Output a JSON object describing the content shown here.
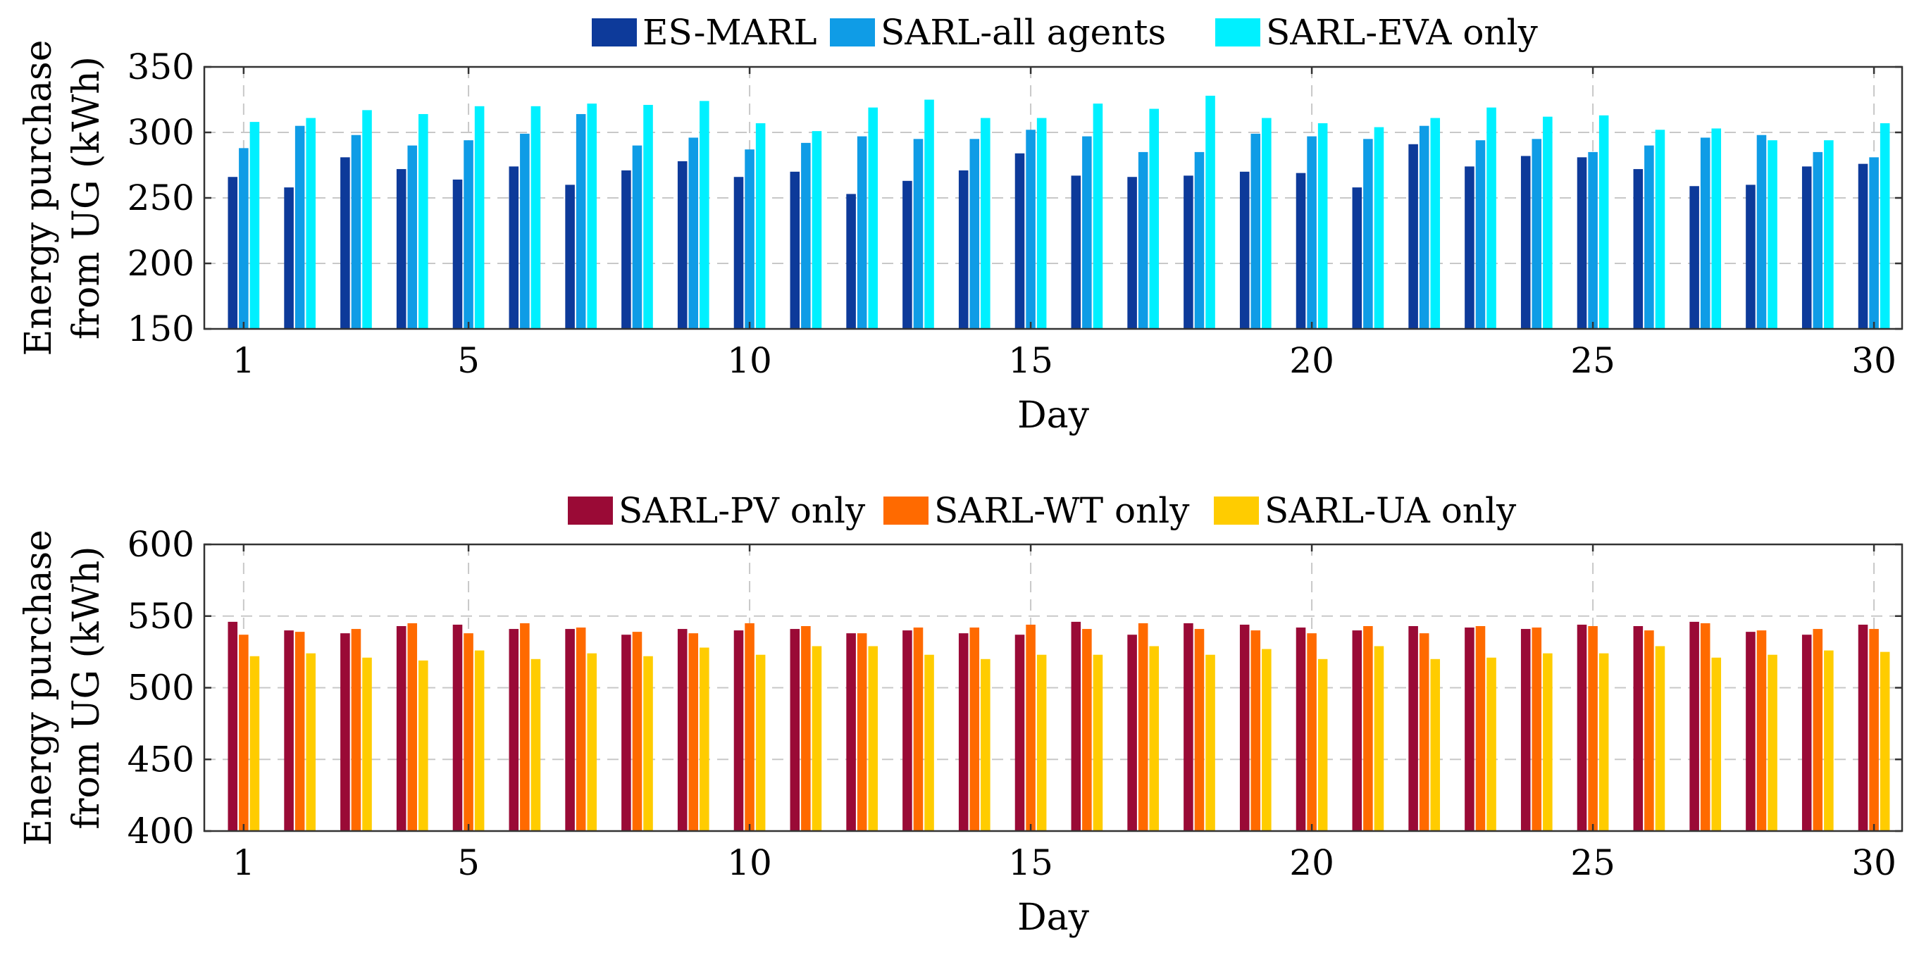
{
  "chart_data": [
    {
      "type": "bar",
      "title": "",
      "xlabel": "Day",
      "ylabel": [
        "Energy purchase",
        "from UG (kWh)"
      ],
      "x": [
        1,
        2,
        3,
        4,
        5,
        6,
        7,
        8,
        9,
        10,
        11,
        12,
        13,
        14,
        15,
        16,
        17,
        18,
        19,
        20,
        21,
        22,
        23,
        24,
        25,
        26,
        27,
        28,
        29,
        30
      ],
      "xticks": [
        "1",
        "5",
        "10",
        "15",
        "20",
        "25",
        "30"
      ],
      "xlim": [
        0.3,
        30.5
      ],
      "ylim": [
        150,
        350
      ],
      "yticks": [
        "150",
        "200",
        "250",
        "300",
        "350"
      ],
      "grid": true,
      "legend_position": "top-center",
      "series": [
        {
          "name": "ES-MARL",
          "color": "#0d3a9a",
          "values": [
            266,
            258,
            281,
            272,
            264,
            274,
            260,
            271,
            278,
            266,
            270,
            253,
            263,
            271,
            284,
            267,
            266,
            267,
            270,
            269,
            258,
            291,
            274,
            282,
            281,
            272,
            259,
            260,
            274,
            276
          ]
        },
        {
          "name": "SARL-all agents",
          "color": "#0f9ce6",
          "values": [
            288,
            305,
            298,
            290,
            294,
            299,
            314,
            290,
            296,
            287,
            292,
            297,
            295,
            295,
            302,
            297,
            285,
            285,
            299,
            297,
            295,
            305,
            294,
            295,
            285,
            290,
            296,
            298,
            285,
            281
          ]
        },
        {
          "name": "SARL-EVA only",
          "color": "#00f0ff",
          "values": [
            308,
            311,
            317,
            314,
            320,
            320,
            322,
            321,
            324,
            307,
            301,
            319,
            325,
            311,
            311,
            322,
            318,
            328,
            311,
            307,
            304,
            311,
            319,
            312,
            313,
            302,
            303,
            294,
            294,
            307
          ]
        }
      ]
    },
    {
      "type": "bar",
      "title": "",
      "xlabel": "Day",
      "ylabel": [
        "Energy purchase",
        "from UG (kWh)"
      ],
      "x": [
        1,
        2,
        3,
        4,
        5,
        6,
        7,
        8,
        9,
        10,
        11,
        12,
        13,
        14,
        15,
        16,
        17,
        18,
        19,
        20,
        21,
        22,
        23,
        24,
        25,
        26,
        27,
        28,
        29,
        30
      ],
      "xticks": [
        "1",
        "5",
        "10",
        "15",
        "20",
        "25",
        "30"
      ],
      "xlim": [
        0.3,
        30.5
      ],
      "ylim": [
        400,
        600
      ],
      "yticks": [
        "400",
        "450",
        "500",
        "550",
        "600"
      ],
      "grid": true,
      "legend_position": "top-center",
      "series": [
        {
          "name": "SARL-PV only",
          "color": "#9a0a36",
          "values": [
            546,
            540,
            538,
            543,
            544,
            541,
            541,
            537,
            541,
            540,
            541,
            538,
            540,
            538,
            537,
            546,
            537,
            545,
            544,
            542,
            540,
            543,
            542,
            541,
            544,
            543,
            546,
            539,
            537,
            544
          ]
        },
        {
          "name": "SARL-WT only",
          "color": "#ff6a00",
          "values": [
            537,
            539,
            541,
            545,
            538,
            545,
            542,
            539,
            538,
            545,
            543,
            538,
            542,
            542,
            544,
            541,
            545,
            541,
            540,
            538,
            543,
            538,
            543,
            542,
            543,
            540,
            545,
            540,
            541,
            541
          ]
        },
        {
          "name": "SARL-UA only",
          "color": "#ffcc00",
          "values": [
            522,
            524,
            521,
            519,
            526,
            520,
            524,
            522,
            528,
            523,
            529,
            529,
            523,
            520,
            523,
            523,
            529,
            523,
            527,
            520,
            529,
            520,
            521,
            524,
            524,
            529,
            521,
            523,
            526,
            525
          ]
        }
      ]
    }
  ]
}
